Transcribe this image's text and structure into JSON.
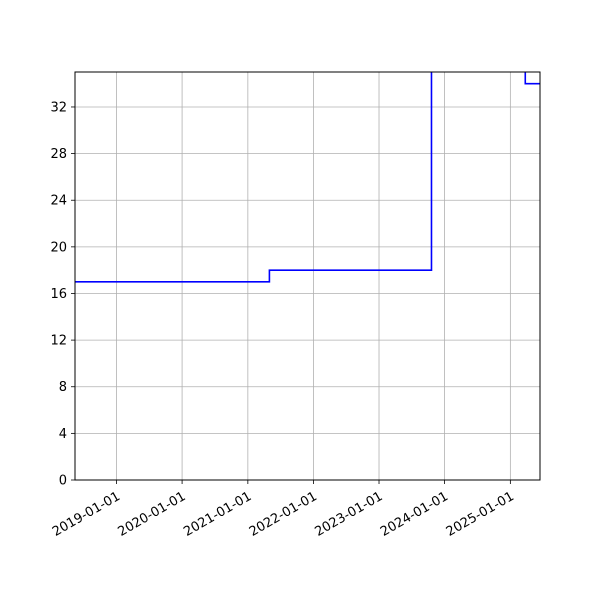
{
  "chart_data": {
    "type": "line",
    "drawstyle": "steps-post",
    "x_type": "date",
    "title": "",
    "xlabel": "",
    "ylabel": "",
    "grid": true,
    "xlim": [
      "2018-05-15",
      "2025-06-15"
    ],
    "ylim": [
      0,
      35
    ],
    "x_ticks": [
      "2019-01-01",
      "2020-01-01",
      "2021-01-01",
      "2022-01-01",
      "2023-01-01",
      "2024-01-01",
      "2025-01-01"
    ],
    "y_ticks": [
      0,
      4,
      8,
      12,
      16,
      20,
      24,
      28,
      32
    ],
    "series": [
      {
        "color": "#0000ff",
        "points": [
          {
            "x": "2018-05-15",
            "y": 17
          },
          {
            "x": "2021-05-01",
            "y": 18
          },
          {
            "x": "2023-10-20",
            "y": 36
          },
          {
            "x": "2025-03-25",
            "y": 34
          },
          {
            "x": "2025-06-15",
            "y": 34
          }
        ]
      }
    ]
  }
}
